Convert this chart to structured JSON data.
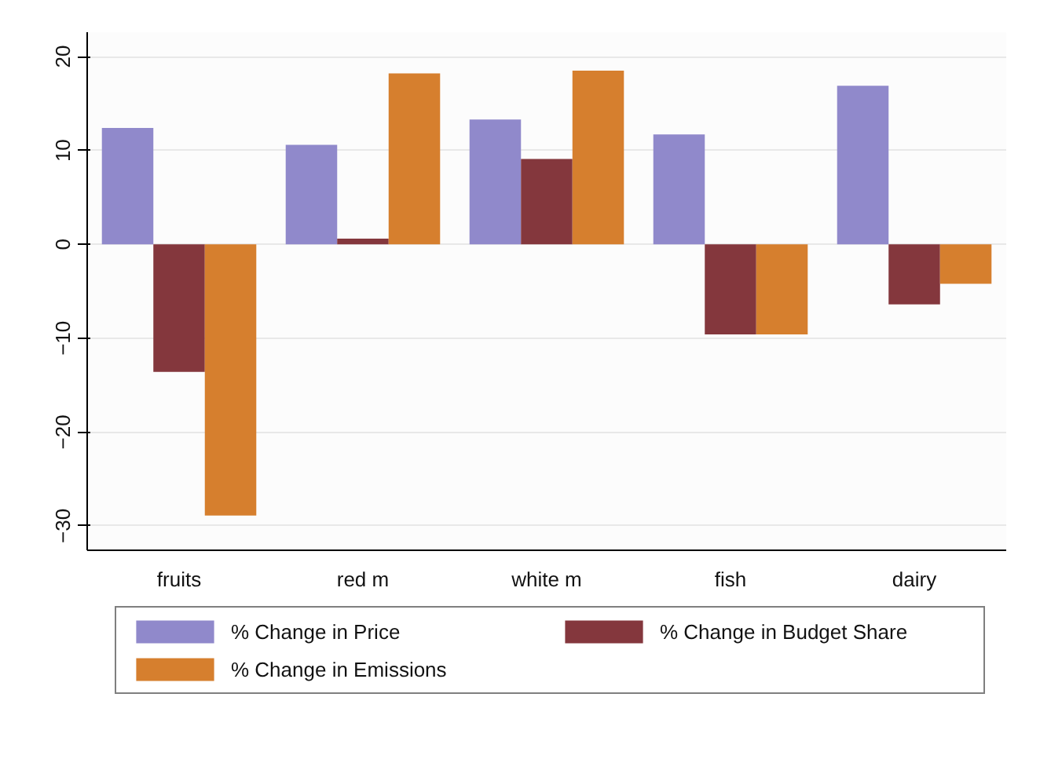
{
  "chart_data": {
    "type": "bar",
    "categories": [
      "fruits",
      "red m",
      "white m",
      "fish",
      "dairy"
    ],
    "series": [
      {
        "name": "% Change in Price",
        "color": "#9089cb",
        "values": [
          12.4,
          10.6,
          13.3,
          11.7,
          16.9
        ]
      },
      {
        "name": "% Change in Budget Share",
        "color": "#84373d",
        "values": [
          -13.6,
          0.6,
          9.1,
          -9.6,
          -6.4
        ]
      },
      {
        "name": "% Change in Emissions",
        "color": "#d67f2e",
        "values": [
          -28.9,
          18.2,
          18.5,
          -9.6,
          -4.2
        ]
      }
    ],
    "ylim": [
      -32.6,
      22.6
    ],
    "yticks": [
      -30,
      -20,
      -10,
      0,
      10,
      20
    ],
    "grid": "y",
    "legend": "bottom"
  }
}
